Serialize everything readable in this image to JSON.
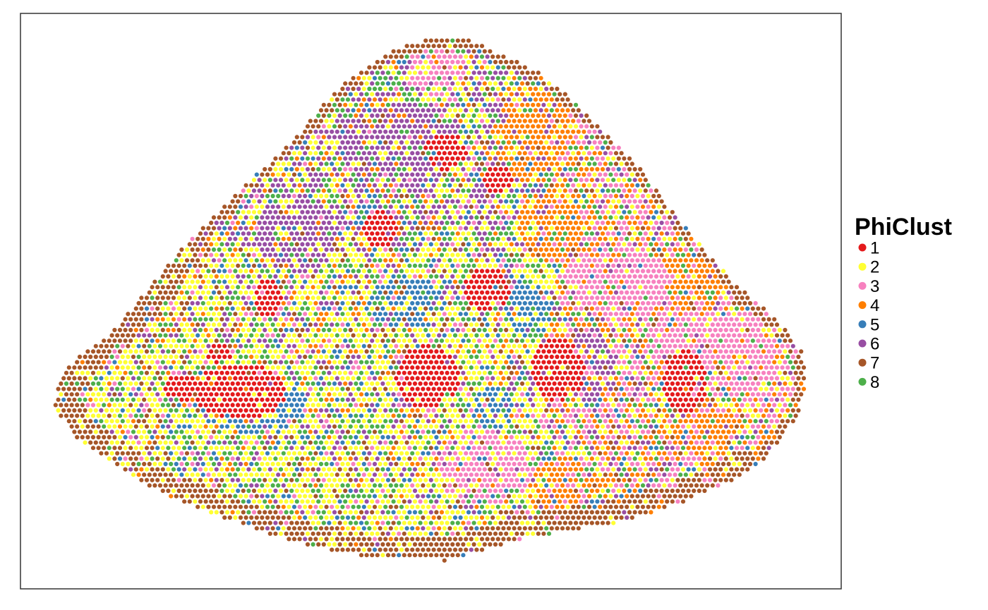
{
  "chart_data": {
    "type": "scatter",
    "title": "",
    "xlabel": "",
    "ylabel": "",
    "axes_visible": false,
    "grid": false,
    "panel_border": true,
    "legend": {
      "title": "PhiClust",
      "placement": "right",
      "entries": [
        {
          "label": "1",
          "color": "#E41A1C"
        },
        {
          "label": "2",
          "color": "#FFFF33"
        },
        {
          "label": "3",
          "color": "#F781BF"
        },
        {
          "label": "4",
          "color": "#FF7F00"
        },
        {
          "label": "5",
          "color": "#377EB8"
        },
        {
          "label": "6",
          "color": "#984EA3"
        },
        {
          "label": "7",
          "color": "#A65628"
        },
        {
          "label": "8",
          "color": "#4DAF4A"
        }
      ]
    },
    "description": "Spatial scatter of spots on a regular grid forming a tissue section; spots colored by cluster. Cluster 7 forms the outer boundary, cluster 1 forms compact patches, cluster 3 and 4 dominate the right side."
  }
}
